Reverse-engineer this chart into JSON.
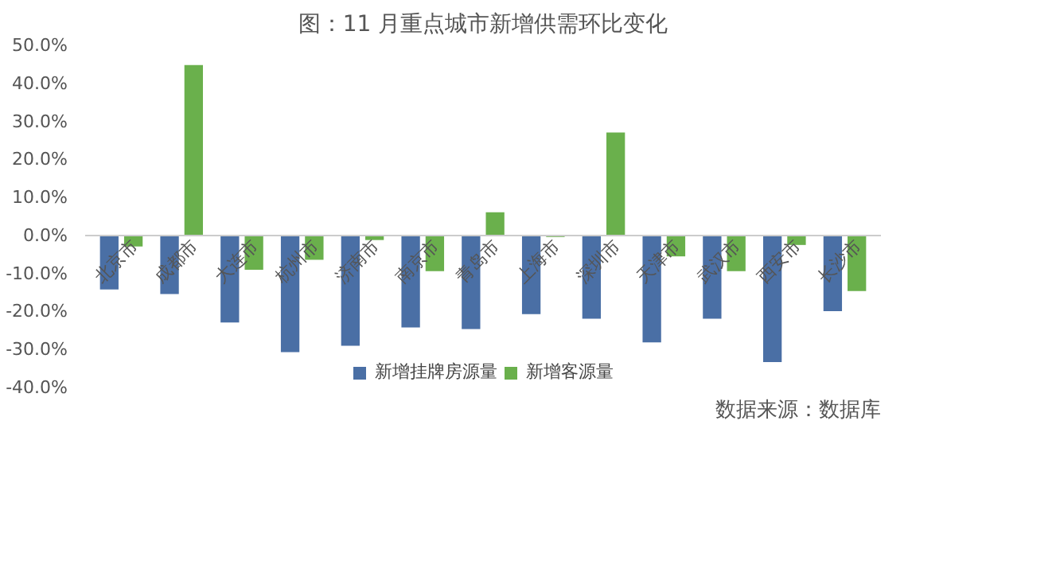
{
  "chart_data": {
    "type": "bar",
    "title": "图：11 月重点城市新增供需环比变化",
    "categories": [
      "北京市",
      "成都市",
      "大连市",
      "杭州市",
      "济南市",
      "南京市",
      "青岛市",
      "上海市",
      "深圳市",
      "天津市",
      "武汉市",
      "西安市",
      "长沙市"
    ],
    "series": [
      {
        "name": "新增挂牌房源量",
        "color": "#4a6fa5",
        "values": [
          -14.2,
          -15.4,
          -22.9,
          -30.7,
          -29.0,
          -24.2,
          -24.6,
          -20.7,
          -21.9,
          -28.1,
          -21.9,
          -33.3,
          -19.9
        ]
      },
      {
        "name": "新增客源量",
        "color": "#6ab04c",
        "values": [
          -2.9,
          44.8,
          -9.0,
          -6.4,
          -1.2,
          -9.4,
          6.1,
          -0.4,
          27.1,
          -5.5,
          -9.4,
          -2.5,
          -14.6
        ]
      }
    ],
    "ylim": [
      -40,
      50
    ],
    "yticks": [
      {
        "value": -40,
        "label": "-40.0%"
      },
      {
        "value": -30,
        "label": "-30.0%"
      },
      {
        "value": -20,
        "label": "-20.0%"
      },
      {
        "value": -10,
        "label": "-10.0%"
      },
      {
        "value": 0,
        "label": "0.0%"
      },
      {
        "value": 10,
        "label": "10.0%"
      },
      {
        "value": 20,
        "label": "20.0%"
      },
      {
        "value": 30,
        "label": "30.0%"
      },
      {
        "value": 40,
        "label": "40.0%"
      },
      {
        "value": 50,
        "label": "50.0%"
      }
    ],
    "grid": false,
    "legend": "bottom",
    "annotations": [
      "数据来源：数据库"
    ]
  }
}
